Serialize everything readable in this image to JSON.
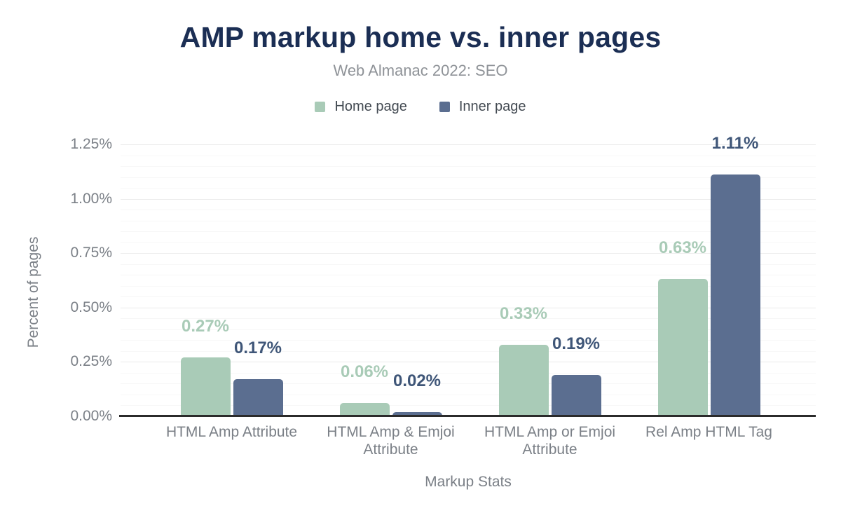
{
  "header": {
    "title": "AMP markup home vs. inner pages",
    "subtitle": "Web Almanac 2022: SEO"
  },
  "chart_data": {
    "type": "bar",
    "title": "AMP markup home vs. inner pages",
    "subtitle": "Web Almanac 2022: SEO",
    "categories": [
      "HTML Amp Attribute",
      "HTML Amp & Emjoi Attribute",
      "HTML Amp or Emjoi Attribute",
      "Rel Amp HTML Tag"
    ],
    "series": [
      {
        "name": "Home page",
        "color": "#a9cbb7",
        "label_color": "#a9cbb7",
        "values": [
          0.27,
          0.06,
          0.33,
          0.63
        ]
      },
      {
        "name": "Inner page",
        "color": "#5b6e90",
        "label_color": "#3f5678",
        "values": [
          0.17,
          0.02,
          0.19,
          1.11
        ]
      }
    ],
    "value_labels": [
      [
        "0.27%",
        "0.06%",
        "0.33%",
        "0.63%"
      ],
      [
        "0.17%",
        "0.02%",
        "0.19%",
        "1.11%"
      ]
    ],
    "xlabel": "Markup Stats",
    "ylabel": "Percent of pages",
    "y_ticks": [
      "0.00%",
      "0.25%",
      "0.50%",
      "0.75%",
      "1.00%",
      "1.25%"
    ],
    "ylim": [
      0,
      1.25
    ],
    "y_major_step": 0.25,
    "y_minor_step": 0.05,
    "grid": true,
    "legend_position": "top"
  },
  "colors": {
    "background": "#ffffff",
    "title": "#1b2e54",
    "subtitle": "#8f9398",
    "legend_text": "#434a52",
    "axis_text": "#7b8087",
    "axis_line": "#2b2b2b",
    "grid_major": "#ebebeb",
    "grid_minor": "#f7f7f7"
  }
}
